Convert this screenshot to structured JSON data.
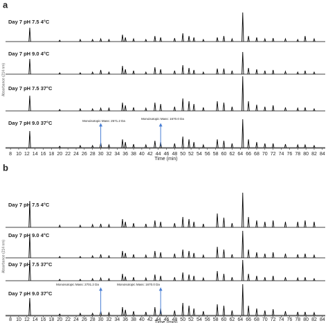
{
  "chart_data": [
    {
      "type": "chromatogram",
      "label": "a",
      "xlabel": "Time (min)",
      "ylabel": "Absorbance (214 nm)",
      "xlim": [
        6.8,
        84.7
      ],
      "xticks": [
        8,
        10,
        12,
        14,
        16,
        18,
        20,
        22,
        24,
        26,
        28,
        30,
        32,
        34,
        36,
        38,
        40,
        42,
        44,
        46,
        48,
        50,
        52,
        54,
        56,
        58,
        60,
        62,
        64,
        66,
        68,
        70,
        72,
        74,
        76,
        78,
        80,
        82,
        84
      ],
      "x": [
        12.7,
        20,
        25,
        28,
        30,
        32,
        35.3,
        36,
        38,
        41,
        43.2,
        44.6,
        48,
        50,
        51.5,
        52.7,
        55,
        58.4,
        60,
        62,
        64.6,
        66,
        68,
        70,
        72,
        75,
        78,
        79.8,
        82
      ],
      "series": [
        {
          "name": "Day 7 pH 7.5 4°C",
          "color": "#000000",
          "values": [
            20,
            2,
            3,
            3,
            4,
            3,
            10,
            6,
            4,
            3,
            8,
            6,
            5,
            12,
            8,
            6,
            3,
            6,
            8,
            4,
            42,
            8,
            6,
            4,
            5,
            4,
            3,
            8,
            4
          ]
        },
        {
          "name": "Day 7 pH 9.0 4°C",
          "color": "#000000",
          "values": [
            22,
            2,
            2,
            3,
            6,
            3,
            12,
            7,
            5,
            3,
            10,
            7,
            5,
            13,
            9,
            6,
            3,
            8,
            8,
            5,
            32,
            9,
            7,
            5,
            6,
            4,
            3,
            5,
            3
          ]
        },
        {
          "name": "Day 7 pH 7.5 37°C",
          "color": "#000000",
          "values": [
            22,
            2,
            3,
            3,
            4,
            4,
            12,
            8,
            5,
            4,
            12,
            10,
            6,
            18,
            14,
            10,
            5,
            14,
            12,
            6,
            50,
            14,
            9,
            6,
            8,
            5,
            4,
            5,
            3
          ]
        },
        {
          "name": "Day 7 pH 9.0 37°C",
          "color": "#000000",
          "values": [
            24,
            2,
            3,
            3,
            7,
            4,
            12,
            8,
            5,
            4,
            10,
            8,
            6,
            16,
            12,
            8,
            4,
            12,
            10,
            6,
            41,
            12,
            8,
            6,
            6,
            5,
            4,
            4,
            3
          ]
        }
      ],
      "annotations": [
        {
          "text": "Monoisotopic Mass: 2571.2 Da",
          "x": 30,
          "color": "#4a7fd4"
        },
        {
          "text": "Monoisotopic Mass: 1670.0 Da",
          "x": 44.6,
          "color": "#4a7fd4"
        }
      ]
    },
    {
      "type": "chromatogram",
      "label": "b",
      "xlabel": "Time (min)",
      "ylabel": "Absorbance (214 nm)",
      "xlim": [
        6.8,
        84.7
      ],
      "xticks": [
        8,
        10,
        12,
        14,
        16,
        18,
        20,
        22,
        24,
        26,
        28,
        30,
        32,
        34,
        36,
        38,
        40,
        42,
        44,
        46,
        48,
        50,
        52,
        54,
        56,
        58,
        60,
        62,
        64,
        66,
        68,
        70,
        72,
        74,
        76,
        78,
        80,
        82,
        84
      ],
      "x": [
        12.7,
        20,
        25,
        28,
        30,
        32,
        35.3,
        36,
        38,
        41,
        43.2,
        44.6,
        48,
        50,
        51.5,
        52.7,
        55,
        58.4,
        60,
        62,
        64.6,
        66,
        68,
        70,
        72,
        75,
        78,
        79.8,
        82
      ],
      "series": [
        {
          "name": "Day 7 pH 7.5 4°C",
          "color": "#000000",
          "values": [
            38,
            3,
            3,
            4,
            5,
            4,
            12,
            8,
            6,
            5,
            10,
            8,
            6,
            15,
            12,
            8,
            5,
            20,
            14,
            6,
            50,
            15,
            10,
            8,
            10,
            8,
            8,
            10,
            8
          ]
        },
        {
          "name": "Day 7 pH 9.0 4°C",
          "color": "#000000",
          "values": [
            34,
            2,
            2,
            3,
            5,
            3,
            10,
            7,
            5,
            4,
            10,
            8,
            6,
            12,
            10,
            7,
            4,
            16,
            12,
            5,
            39,
            12,
            8,
            6,
            8,
            6,
            5,
            6,
            4
          ]
        },
        {
          "name": "Day 7 pH 7.5 37°C",
          "color": "#000000",
          "values": [
            30,
            2,
            2,
            3,
            4,
            3,
            10,
            6,
            5,
            4,
            9,
            7,
            5,
            12,
            9,
            7,
            4,
            14,
            10,
            5,
            30,
            10,
            7,
            5,
            7,
            5,
            4,
            5,
            3
          ]
        },
        {
          "name": "Day 7 pH 9.0 37°C",
          "color": "#000000",
          "values": [
            25,
            2,
            3,
            3,
            6,
            4,
            12,
            8,
            6,
            5,
            12,
            10,
            7,
            18,
            14,
            10,
            6,
            16,
            14,
            7,
            45,
            14,
            10,
            7,
            9,
            6,
            5,
            5,
            4
          ]
        }
      ],
      "annotations": [
        {
          "text": "Monoisotopic Mass: 2701.2 Da",
          "x": 30,
          "color": "#4a7fd4"
        },
        {
          "text": "Monoisotopic Mass: 1670.0 Da",
          "x": 44.6,
          "color": "#4a7fd4"
        }
      ]
    }
  ]
}
